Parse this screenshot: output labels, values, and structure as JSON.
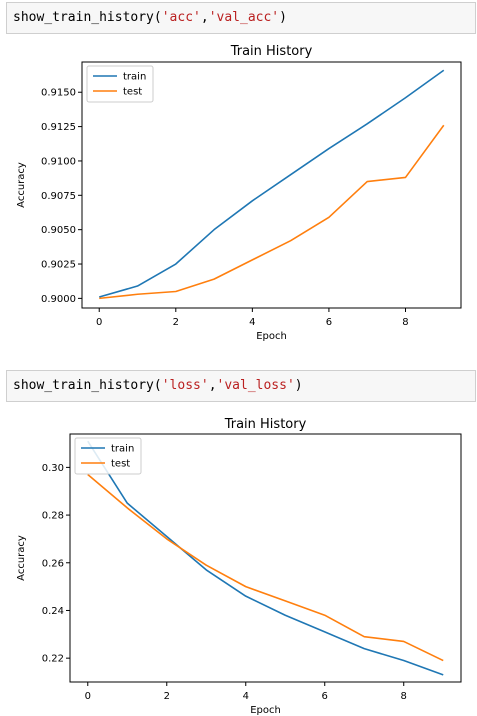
{
  "cells": [
    {
      "code": {
        "fn": "show_train_history(",
        "arg1": "'acc'",
        "sep": ",",
        "arg2": "'val_acc'",
        "close": ")"
      }
    },
    {
      "code": {
        "fn": "show_train_history(",
        "arg1": "'loss'",
        "sep": ",",
        "arg2": "'val_loss'",
        "close": ")"
      }
    }
  ],
  "chart_data": [
    {
      "type": "line",
      "title": "Train History",
      "xlabel": "Epoch",
      "ylabel": "Accuracy",
      "x": [
        0,
        1,
        2,
        3,
        4,
        5,
        6,
        7,
        8,
        9
      ],
      "xlim": [
        -0.45,
        9.45
      ],
      "ylim": [
        0.8993,
        0.9172
      ],
      "xticks": [
        0,
        2,
        4,
        6,
        8
      ],
      "yticks": [
        0.9,
        0.9025,
        0.905,
        0.9075,
        0.91,
        0.9125,
        0.915
      ],
      "ytick_labels": [
        "0.9000",
        "0.9025",
        "0.9050",
        "0.9075",
        "0.9100",
        "0.9125",
        "0.9150"
      ],
      "legend_position": "top-left",
      "grid": false,
      "series": [
        {
          "name": "train",
          "color": "#1f77b4",
          "values": [
            0.9001,
            0.9009,
            0.9025,
            0.905,
            0.9071,
            0.909,
            0.9109,
            0.9127,
            0.9146,
            0.9166
          ]
        },
        {
          "name": "test",
          "color": "#ff7f0e",
          "values": [
            0.9,
            0.9003,
            0.9005,
            0.9014,
            0.9028,
            0.9042,
            0.9059,
            0.9085,
            0.9088,
            0.9126
          ]
        }
      ]
    },
    {
      "type": "line",
      "title": "Train History",
      "xlabel": "Epoch",
      "ylabel": "Accuracy",
      "x": [
        0,
        1,
        2,
        3,
        4,
        5,
        6,
        7,
        8,
        9
      ],
      "xlim": [
        -0.45,
        9.45
      ],
      "ylim": [
        0.21,
        0.314
      ],
      "xticks": [
        0,
        2,
        4,
        6,
        8
      ],
      "yticks": [
        0.22,
        0.24,
        0.26,
        0.28,
        0.3
      ],
      "ytick_labels": [
        "0.22",
        "0.24",
        "0.26",
        "0.28",
        "0.30"
      ],
      "legend_position": "top-left",
      "grid": false,
      "series": [
        {
          "name": "train",
          "color": "#1f77b4",
          "values": [
            0.311,
            0.285,
            0.271,
            0.257,
            0.246,
            0.238,
            0.231,
            0.224,
            0.219,
            0.213
          ]
        },
        {
          "name": "test",
          "color": "#ff7f0e",
          "values": [
            0.297,
            0.283,
            0.27,
            0.259,
            0.25,
            0.244,
            0.238,
            0.229,
            0.227,
            0.219
          ]
        }
      ]
    }
  ]
}
